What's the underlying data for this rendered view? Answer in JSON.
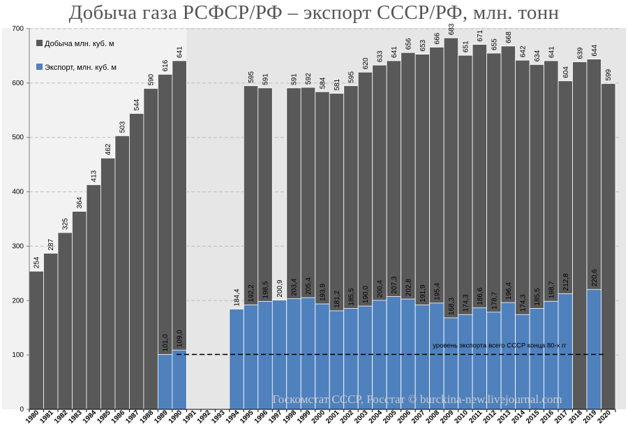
{
  "chart_data": {
    "type": "bar",
    "title": "Добыча газа РСФСР/РФ – экспорт СССР/РФ, млн. тонн",
    "xlabel": "",
    "ylabel": "",
    "ylim": [
      0,
      700
    ],
    "yticks": [
      0,
      100,
      200,
      300,
      400,
      500,
      600,
      700
    ],
    "grid": true,
    "legend_position": "top-left",
    "categories": [
      "1980",
      "1981",
      "1982",
      "1983",
      "1984",
      "1985",
      "1986",
      "1987",
      "1988",
      "1989",
      "1990",
      "1991",
      "1992",
      "1993",
      "1994",
      "1995",
      "1996",
      "1997",
      "1998",
      "1999",
      "2000",
      "2001",
      "2002",
      "2003",
      "2004",
      "2005",
      "2006",
      "2007",
      "2008",
      "2009",
      "2010",
      "2011",
      "2012",
      "2013",
      "2014",
      "2015",
      "2016",
      "2017",
      "2018",
      "2019",
      "2020"
    ],
    "series": [
      {
        "name": "Добыча млн. куб. м",
        "color": "#595959",
        "values": [
          254,
          287,
          325,
          364,
          413,
          462,
          503,
          544,
          590,
          616,
          641,
          null,
          null,
          null,
          null,
          595,
          591,
          null,
          591,
          592,
          584,
          581,
          595,
          620,
          633,
          641,
          656,
          653,
          666,
          683,
          651,
          671,
          655,
          668,
          642,
          634,
          641,
          604,
          639,
          644,
          599
        ],
        "labels": [
          "254",
          "287",
          "325",
          "364",
          "413",
          "462",
          "503",
          "544",
          "590",
          "616",
          "641",
          "",
          "",
          "",
          "",
          "595",
          "591",
          "",
          "591",
          "592",
          "584",
          "581",
          "595",
          "620",
          "633",
          "641",
          "656",
          "653",
          "666",
          "683",
          "651",
          "671",
          "655",
          "668",
          "642",
          "634",
          "641",
          "604",
          "639",
          "644",
          "599"
        ]
      },
      {
        "name": "Экспорт,  млн. куб. м",
        "color": "#4f81bd",
        "values": [
          null,
          null,
          null,
          null,
          null,
          null,
          null,
          null,
          null,
          101.0,
          109.0,
          null,
          null,
          null,
          184.4,
          192.2,
          198.5,
          200.9,
          203.4,
          205.4,
          193.9,
          181.2,
          185.5,
          190.0,
          200.4,
          207.3,
          202.8,
          191.9,
          195.4,
          168.3,
          174.3,
          186.6,
          178.7,
          196.4,
          174.3,
          185.5,
          198.7,
          212.8,
          null,
          220.6,
          null
        ],
        "labels": [
          "",
          "",
          "",
          "",
          "",
          "",
          "",
          "",
          "",
          "101,0",
          "109,0",
          "",
          "",
          "",
          "184,4",
          "192,2",
          "198,5",
          "200,9",
          "203,4",
          "205,4",
          "193,9",
          "181,2",
          "185,5",
          "190,0",
          "200,4",
          "207,3",
          "202,8",
          "191,9",
          "195,4",
          "168,3",
          "174,3",
          "186,6",
          "178,7",
          "196,4",
          "174,3",
          "185,5",
          "198,7",
          "212,8",
          "",
          "220,6",
          ""
        ]
      }
    ],
    "reference_line": {
      "value": 101,
      "from": "1990",
      "to": "2020",
      "style": "dashed",
      "label": "уровень экспорта всего СССР конца 80-х гг"
    },
    "background_bands": [
      {
        "from": "1980",
        "to": "1990",
        "color": "#f2f2f2"
      },
      {
        "from": "1991",
        "to": "2020",
        "color": "#e6e6e6"
      }
    ]
  },
  "watermark": "Госкомстат СССР, Росстат © burckina-new.livejournal.com"
}
